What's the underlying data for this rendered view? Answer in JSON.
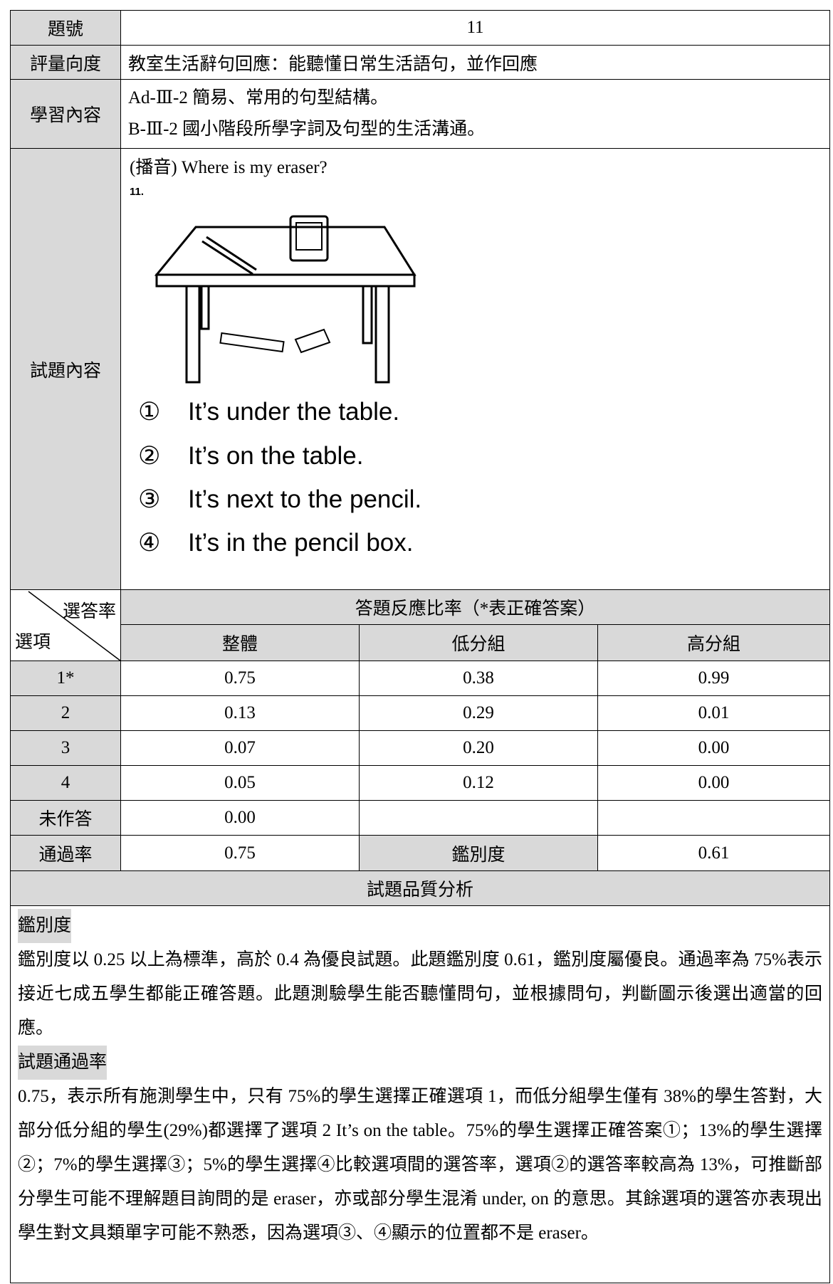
{
  "table": {
    "item_label": "題號",
    "item_number": "11",
    "dimension_label": "評量向度",
    "dimension": "教室生活辭句回應：能聽懂日常生活語句，並作回應",
    "content_label": "學習內容",
    "content": [
      "Ad-Ⅲ-2 簡易、常用的句型結構。",
      "B-Ⅲ-2 國小階段所學字詞及句型的生活溝通。"
    ],
    "question_label": "試題內容",
    "question": {
      "prompt": "(播音) Where is my eraser?",
      "number": "11.",
      "options": [
        {
          "mark": "①",
          "text": "It’s under the table."
        },
        {
          "mark": "②",
          "text": "It’s on the table."
        },
        {
          "mark": "③",
          "text": "It’s next to the pencil."
        },
        {
          "mark": "④",
          "text": "It’s in the pencil box."
        }
      ]
    },
    "response_header": {
      "corner_top": "選答率",
      "corner_bottom": "選項",
      "title": "答題反應比率（*表正確答案）",
      "columns": [
        "整體",
        "低分組",
        "高分組"
      ]
    },
    "rows": [
      [
        "1*",
        "0.75",
        "0.38",
        "0.99"
      ],
      [
        "2",
        "0.13",
        "0.29",
        "0.01"
      ],
      [
        "3",
        "0.07",
        "0.20",
        "0.00"
      ],
      [
        "4",
        "0.05",
        "0.12",
        "0.00"
      ],
      [
        "未作答",
        "0.00"
      ]
    ],
    "pass_row": {
      "label": "通過率",
      "value": "0.75",
      "disc_label": "鑑別度",
      "disc_value": "0.61"
    }
  },
  "analysis": {
    "title": "試題品質分析",
    "sections": [
      {
        "heading": "鑑別度",
        "text": "鑑別度以 0.25 以上為標準，高於 0.4 為優良試題。此題鑑別度 0.61，鑑別度屬優良。通過率為 75%表示接近七成五學生都能正確答題。此題測驗學生能否聽懂問句，並根據問句，判斷圖示後選出適當的回應。"
      },
      {
        "heading": "試題通過率",
        "text": "0.75，表示所有施測學生中，只有 75%的學生選擇正確選項 1，而低分組學生僅有 38%的學生答對，大部分低分組的學生(29%)都選擇了選項 2 It’s on the table。75%的學生選擇正確答案①；13%的學生選擇②；7%的學生選擇③；5%的學生選擇④比較選項間的選答率，選項②的選答率較高為 13%，可推斷部分學生可能不理解題目詢問的是 eraser，亦或部分學生混淆 under, on 的意思。其餘選項的選答亦表現出學生對文具類單字可能不熟悉，因為選項③、④顯示的位置都不是 eraser。"
      }
    ]
  }
}
